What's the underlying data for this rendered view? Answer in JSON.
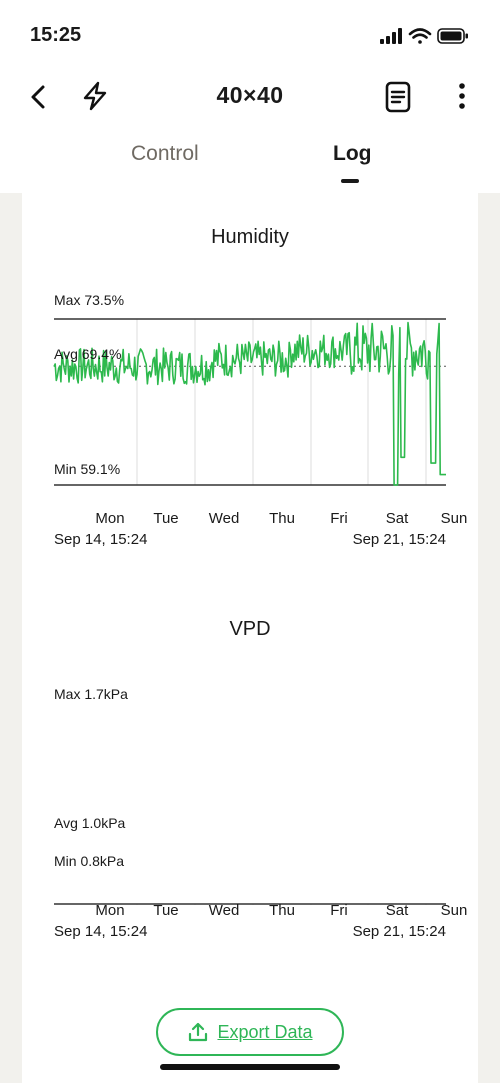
{
  "status_bar": {
    "time": "15:25"
  },
  "header": {
    "title": "40×40",
    "back_icon": "chevron-left-icon",
    "power_icon": "lightning-icon",
    "doc_icon": "document-icon",
    "menu_icon": "more-vertical-icon"
  },
  "tabs": [
    {
      "label": "Control",
      "active": false
    },
    {
      "label": "Log",
      "active": true
    }
  ],
  "colors": {
    "accent": "#2fb657",
    "line": "#2db94d"
  },
  "days": [
    "Mon",
    "Tue",
    "Wed",
    "Thu",
    "Fri",
    "Sat",
    "Sun"
  ],
  "range": {
    "start": "Sep 14, 15:24",
    "end": "Sep 21, 15:24"
  },
  "humidity": {
    "title": "Humidity",
    "max_label": "Max 73.5%",
    "avg_label": "Avg 69.4%",
    "min_label": "Min 59.1%",
    "chart_data": {
      "type": "line",
      "title": "Humidity",
      "max": 73.5,
      "avg": 69.4,
      "min": 59.1,
      "unit": "%",
      "ylim": [
        59.1,
        73.5
      ]
    }
  },
  "vpd": {
    "title": "VPD",
    "max_label": "Max 1.7kPa",
    "avg_label": "Avg 1.0kPa",
    "min_label": "Min 0.8kPa",
    "chart_data": {
      "type": "line",
      "title": "VPD",
      "max": 1.7,
      "avg": 1.0,
      "min": 0.8,
      "unit": "kPa",
      "ylim": [
        0.8,
        1.7
      ]
    }
  },
  "export": {
    "label": "Export Data",
    "icon": "upload-icon"
  }
}
